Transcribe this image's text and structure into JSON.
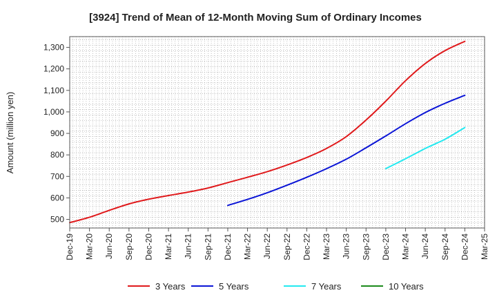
{
  "chart_data": {
    "type": "line",
    "title": "[3924]  Trend of Mean of 12-Month Moving Sum of Ordinary Incomes",
    "xlabel": "",
    "ylabel": "Amount (million yen)",
    "ylim": [
      460,
      1350
    ],
    "yticks": [
      500,
      600,
      700,
      800,
      900,
      1000,
      1100,
      1200,
      1300
    ],
    "ytick_labels": [
      "500",
      "600",
      "700",
      "800",
      "900",
      "1,000",
      "1,100",
      "1,200",
      "1,300"
    ],
    "categories": [
      "Dec-19",
      "Mar-20",
      "Jun-20",
      "Sep-20",
      "Dec-20",
      "Mar-21",
      "Jun-21",
      "Sep-21",
      "Dec-21",
      "Mar-22",
      "Jun-22",
      "Sep-22",
      "Dec-22",
      "Mar-23",
      "Jun-23",
      "Sep-23",
      "Dec-23",
      "Mar-24",
      "Jun-24",
      "Sep-24",
      "Dec-24",
      "Mar-25"
    ],
    "grid": true,
    "legend_position": "bottom",
    "series": [
      {
        "name": "3 Years",
        "color": "#e0191b",
        "values": [
          485,
          510,
          542,
          572,
          594,
          611,
          627,
          646,
          671,
          696,
          722,
          753,
          788,
          830,
          885,
          962,
          1050,
          1145,
          1225,
          1285,
          1328,
          null
        ]
      },
      {
        "name": "5 Years",
        "color": "#0a14d6",
        "values": [
          null,
          null,
          null,
          null,
          null,
          null,
          null,
          null,
          565,
          593,
          624,
          659,
          696,
          736,
          780,
          833,
          888,
          945,
          997,
          1040,
          1077,
          null
        ]
      },
      {
        "name": "7 Years",
        "color": "#22e9f0",
        "values": [
          null,
          null,
          null,
          null,
          null,
          null,
          null,
          null,
          null,
          null,
          null,
          null,
          null,
          null,
          null,
          null,
          736,
          782,
          830,
          873,
          927,
          null
        ]
      },
      {
        "name": "10 Years",
        "color": "#1a8a1a",
        "values": [
          null,
          null,
          null,
          null,
          null,
          null,
          null,
          null,
          null,
          null,
          null,
          null,
          null,
          null,
          null,
          null,
          null,
          null,
          null,
          null,
          null,
          null
        ]
      }
    ]
  }
}
